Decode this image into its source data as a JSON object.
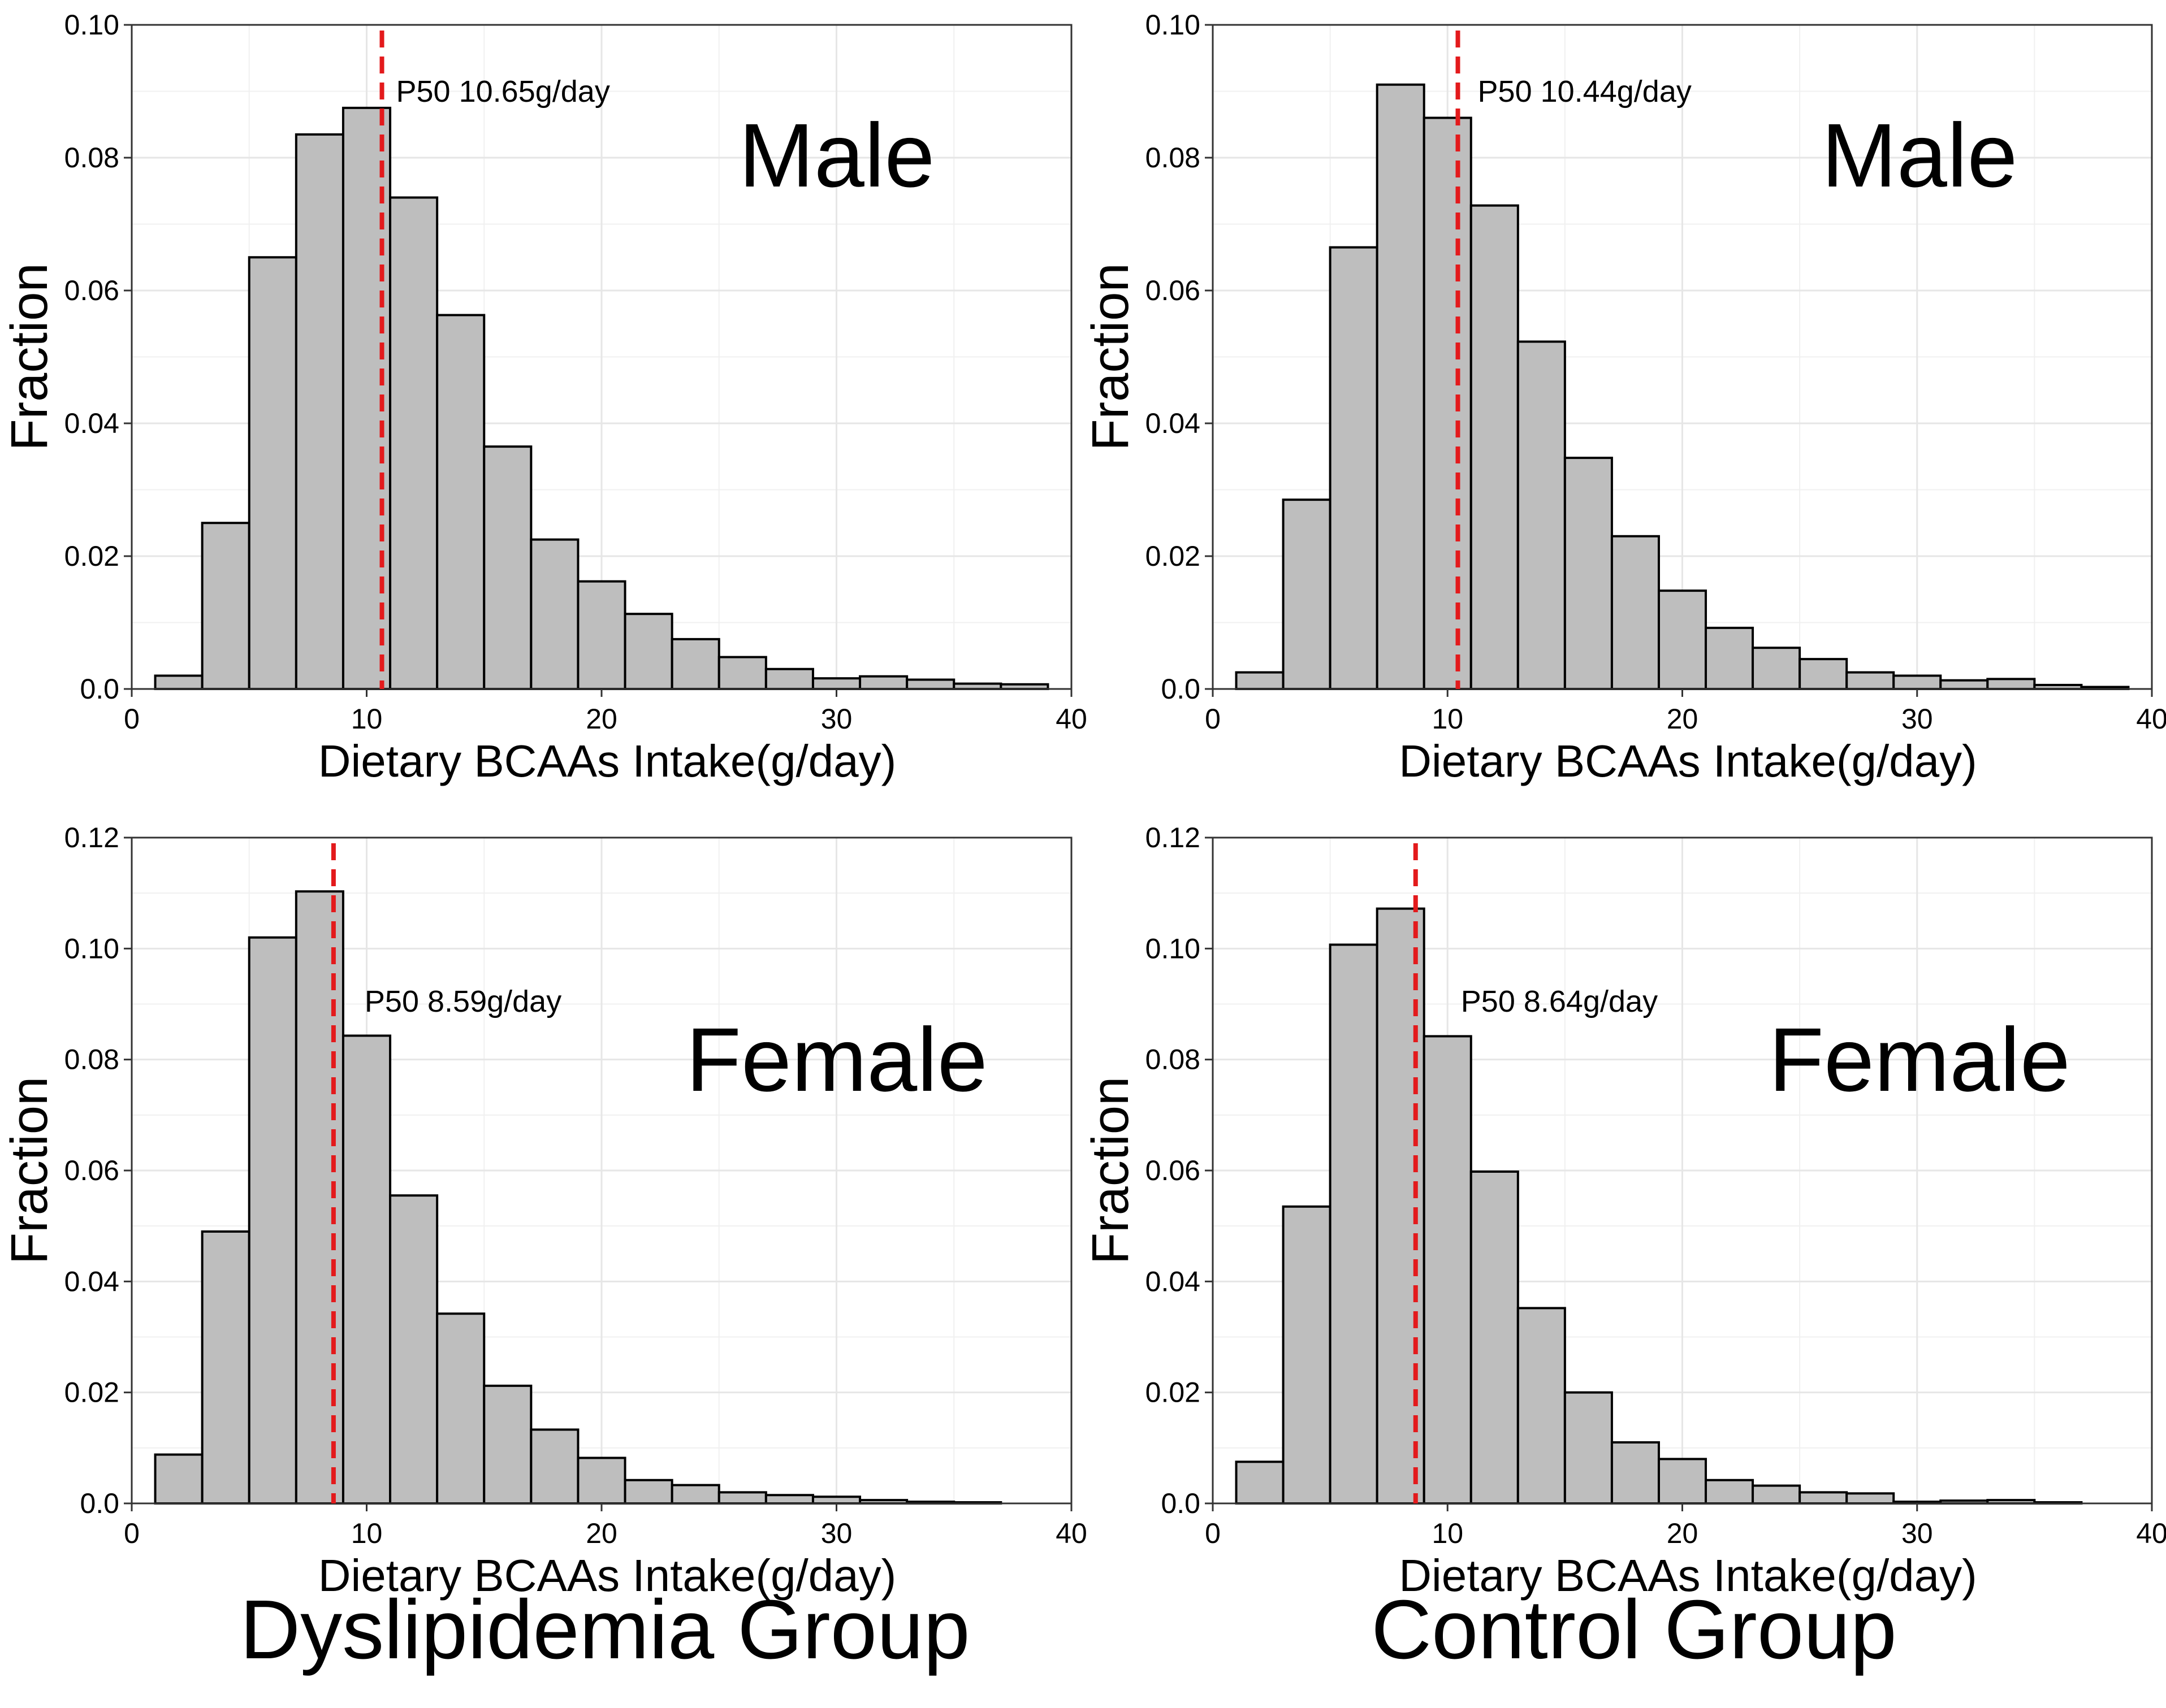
{
  "groups": {
    "left": "Dyslipidemia Group",
    "right": "Control Group"
  },
  "colors": {
    "bar_fill": "#bebebe",
    "bar_stroke": "#000000",
    "grid": "#e6e6e6",
    "median_line": "#e31a1c"
  },
  "chart_data": [
    {
      "type": "bar",
      "id": "dys-male",
      "group": "Dyslipidemia Group",
      "panel_label": "Male",
      "xlabel": "Dietary BCAAs Intake(g/day)",
      "ylabel": "Fraction",
      "xlim": [
        0,
        40
      ],
      "ylim": [
        0,
        0.1
      ],
      "xticks": [
        0,
        10,
        20,
        30,
        40
      ],
      "yticks": [
        0.0,
        0.02,
        0.04,
        0.06,
        0.08,
        0.1
      ],
      "ytick_labels": [
        "0.0",
        "0.02",
        "0.04",
        "0.06",
        "0.08",
        "0.10"
      ],
      "bin_start": 1,
      "bin_width": 2,
      "values": [
        0.002,
        0.025,
        0.065,
        0.0835,
        0.0875,
        0.074,
        0.0563,
        0.0365,
        0.0225,
        0.0162,
        0.0113,
        0.0075,
        0.0048,
        0.003,
        0.0016,
        0.0019,
        0.0014,
        0.0008,
        0.0007
      ],
      "median": 10.65,
      "median_text": {
        "label": "P50",
        "value": "10.65",
        "unit": "g/day"
      }
    },
    {
      "type": "bar",
      "id": "ctrl-male",
      "group": "Control Group",
      "panel_label": "Male",
      "xlabel": "Dietary BCAAs Intake(g/day)",
      "ylabel": "Fraction",
      "xlim": [
        0,
        40
      ],
      "ylim": [
        0,
        0.1
      ],
      "xticks": [
        0,
        10,
        20,
        30,
        40
      ],
      "yticks": [
        0.0,
        0.02,
        0.04,
        0.06,
        0.08,
        0.1
      ],
      "ytick_labels": [
        "0.0",
        "0.02",
        "0.04",
        "0.06",
        "0.08",
        "0.10"
      ],
      "bin_start": 1,
      "bin_width": 2,
      "values": [
        0.0025,
        0.0285,
        0.0665,
        0.091,
        0.086,
        0.0728,
        0.0523,
        0.0348,
        0.023,
        0.0148,
        0.0092,
        0.0062,
        0.0045,
        0.0025,
        0.002,
        0.0013,
        0.0015,
        0.0006,
        0.0003
      ],
      "median": 10.44,
      "median_text": {
        "label": "P50",
        "value": "10.44",
        "unit": "g/day"
      }
    },
    {
      "type": "bar",
      "id": "dys-female",
      "group": "Dyslipidemia Group",
      "panel_label": "Female",
      "xlabel": "Dietary BCAAs Intake(g/day)",
      "ylabel": "Fraction",
      "xlim": [
        0,
        40
      ],
      "ylim": [
        0,
        0.12
      ],
      "xticks": [
        0,
        10,
        20,
        30,
        40
      ],
      "yticks": [
        0.0,
        0.02,
        0.04,
        0.06,
        0.08,
        0.1,
        0.12
      ],
      "ytick_labels": [
        "0.0",
        "0.02",
        "0.04",
        "0.06",
        "0.08",
        "0.10",
        "0.12"
      ],
      "bin_start": 1,
      "bin_width": 2,
      "values": [
        0.0088,
        0.049,
        0.102,
        0.1103,
        0.0843,
        0.0555,
        0.0342,
        0.0212,
        0.0133,
        0.0082,
        0.0042,
        0.0033,
        0.002,
        0.0015,
        0.0012,
        0.0006,
        0.0003,
        0.0002
      ],
      "median": 8.59,
      "median_text": {
        "label": "P50",
        "value": "8.59",
        "unit": "g/day"
      }
    },
    {
      "type": "bar",
      "id": "ctrl-female",
      "group": "Control Group",
      "panel_label": "Female",
      "xlabel": "Dietary BCAAs Intake(g/day)",
      "ylabel": "Fraction",
      "xlim": [
        0,
        40
      ],
      "ylim": [
        0,
        0.12
      ],
      "xticks": [
        0,
        10,
        20,
        30,
        40
      ],
      "yticks": [
        0.0,
        0.02,
        0.04,
        0.06,
        0.08,
        0.1,
        0.12
      ],
      "ytick_labels": [
        "0.0",
        "0.02",
        "0.04",
        "0.06",
        "0.08",
        "0.10",
        "0.12"
      ],
      "bin_start": 1,
      "bin_width": 2,
      "values": [
        0.0075,
        0.0535,
        0.1007,
        0.1072,
        0.0842,
        0.0598,
        0.0352,
        0.02,
        0.011,
        0.008,
        0.0042,
        0.0032,
        0.002,
        0.0018,
        0.0003,
        0.0005,
        0.0006,
        0.0002
      ],
      "median": 8.64,
      "median_text": {
        "label": "P50",
        "value": "8.64",
        "unit": "g/day"
      }
    }
  ]
}
